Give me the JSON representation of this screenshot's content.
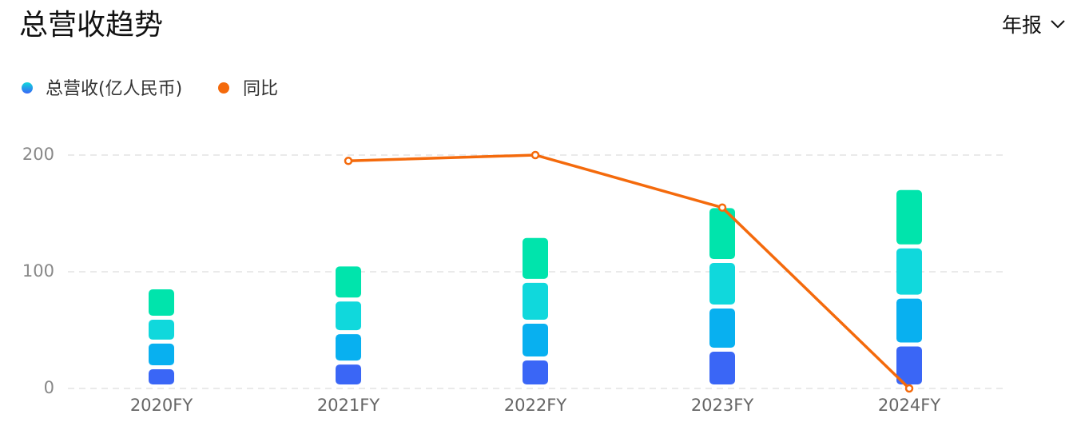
{
  "chart_data": {
    "type": "stacked-bar-line",
    "title": "总营收趋势",
    "period": "年报",
    "categories": [
      "2020FY",
      "2021FY",
      "2022FY",
      "2023FY",
      "2024FY"
    ],
    "series": [
      {
        "name": "总营收(亿人民币)",
        "type": "bar",
        "colors": [
          "#3a66f6",
          "#08b0f0",
          "#10d8dc",
          "#00e4ac"
        ],
        "values": [
          [
            16.4,
            22,
            20.5,
            26
          ],
          [
            20.5,
            26,
            28,
            30
          ],
          [
            24,
            31.5,
            35,
            38.4
          ],
          [
            31.5,
            37,
            39,
            47
          ],
          [
            36,
            41,
            43,
            50
          ]
        ]
      },
      {
        "name": "同比",
        "type": "line",
        "color": "#f46a0c",
        "values": [
          null,
          195,
          200,
          155,
          0
        ]
      }
    ],
    "ylim": [
      0,
      200
    ],
    "yticks": [
      0,
      100,
      200
    ],
    "grid": true
  }
}
